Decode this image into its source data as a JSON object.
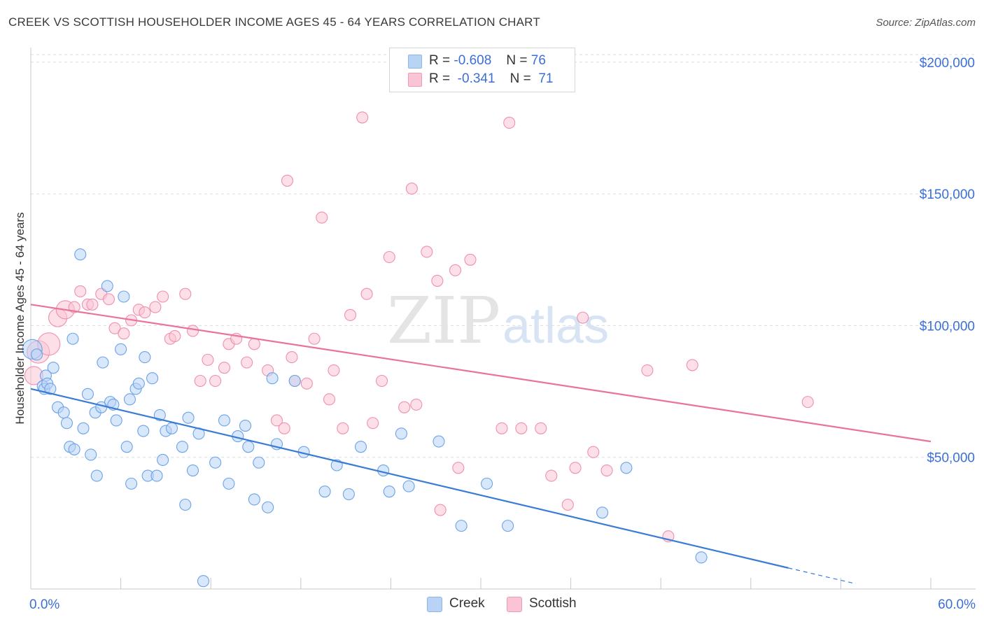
{
  "header": {
    "title": "CREEK VS SCOTTISH HOUSEHOLDER INCOME AGES 45 - 64 YEARS CORRELATION CHART",
    "source": "Source: ZipAtlas.com"
  },
  "watermark": {
    "zip": "ZIP",
    "atlas": "atlas"
  },
  "legend": {
    "rows": [
      {
        "r_label": "R =",
        "r_value": "-0.608",
        "n_label": "N =",
        "n_value": "76",
        "color": "#b9d3f5"
      },
      {
        "r_label": "R =",
        "r_value": "-0.341",
        "n_label": "N =",
        "n_value": "71",
        "color": "#f9c4d4"
      }
    ]
  },
  "bottom_legend": {
    "items": [
      {
        "label": "Creek",
        "color": "#b9d3f5"
      },
      {
        "label": "Scottish",
        "color": "#f9c4d4"
      }
    ]
  },
  "chart_data": {
    "type": "scatter",
    "title": "CREEK VS SCOTTISH HOUSEHOLDER INCOME AGES 45 - 64 YEARS CORRELATION CHART",
    "xlabel": "",
    "ylabel": "Householder Income Ages 45 - 64 years",
    "xlim": [
      0,
      60
    ],
    "ylim": [
      0,
      205000
    ],
    "x_tick_labels": [
      "0.0%",
      "60.0%"
    ],
    "y_ticks": [
      50000,
      100000,
      150000,
      200000
    ],
    "y_tick_labels": [
      "$50,000",
      "$100,000",
      "$150,000",
      "$200,000"
    ],
    "grid": true,
    "legend_position": "top-center",
    "colors": {
      "creek": "#6aa3e8",
      "scottish": "#f08fb0",
      "creek_line": "#3a7bd5",
      "scottish_line": "#e8739d",
      "tick_text": "#3b6fd6"
    },
    "series": [
      {
        "name": "Creek",
        "trend": {
          "x": [
            0,
            50.5
          ],
          "y": [
            76000,
            8000
          ],
          "dashed_to": [
            55,
            2000
          ]
        },
        "points": [
          [
            0.1,
            91000
          ],
          [
            0.4,
            89000
          ],
          [
            0.8,
            77000
          ],
          [
            0.9,
            76000
          ],
          [
            1.0,
            81000
          ],
          [
            1.1,
            78000
          ],
          [
            1.3,
            76000
          ],
          [
            1.5,
            84000
          ],
          [
            1.8,
            69000
          ],
          [
            2.2,
            67000
          ],
          [
            2.4,
            63000
          ],
          [
            2.6,
            54000
          ],
          [
            2.9,
            53000
          ],
          [
            2.8,
            95000
          ],
          [
            3.3,
            127000
          ],
          [
            3.5,
            61000
          ],
          [
            3.8,
            74000
          ],
          [
            4.0,
            51000
          ],
          [
            4.3,
            67000
          ],
          [
            4.4,
            43000
          ],
          [
            4.7,
            69000
          ],
          [
            4.8,
            86000
          ],
          [
            5.1,
            115000
          ],
          [
            5.3,
            71000
          ],
          [
            5.5,
            70000
          ],
          [
            5.7,
            64000
          ],
          [
            6.0,
            91000
          ],
          [
            6.2,
            111000
          ],
          [
            6.4,
            54000
          ],
          [
            6.6,
            72000
          ],
          [
            6.7,
            40000
          ],
          [
            7.0,
            76000
          ],
          [
            7.2,
            78000
          ],
          [
            7.5,
            60000
          ],
          [
            7.6,
            88000
          ],
          [
            7.8,
            43000
          ],
          [
            8.1,
            80000
          ],
          [
            8.4,
            43000
          ],
          [
            8.6,
            66000
          ],
          [
            8.8,
            49000
          ],
          [
            9.0,
            60000
          ],
          [
            9.4,
            61000
          ],
          [
            10.1,
            54000
          ],
          [
            10.3,
            32000
          ],
          [
            10.5,
            65000
          ],
          [
            10.8,
            45000
          ],
          [
            11.2,
            59000
          ],
          [
            11.5,
            3000
          ],
          [
            12.3,
            48000
          ],
          [
            12.9,
            64000
          ],
          [
            13.2,
            40000
          ],
          [
            13.8,
            58000
          ],
          [
            14.3,
            62000
          ],
          [
            14.5,
            54000
          ],
          [
            14.9,
            34000
          ],
          [
            15.2,
            48000
          ],
          [
            15.8,
            31000
          ],
          [
            16.1,
            80000
          ],
          [
            16.4,
            55000
          ],
          [
            17.6,
            79000
          ],
          [
            18.2,
            52000
          ],
          [
            19.6,
            37000
          ],
          [
            20.4,
            47000
          ],
          [
            21.2,
            36000
          ],
          [
            22.0,
            54000
          ],
          [
            23.5,
            45000
          ],
          [
            23.9,
            37000
          ],
          [
            24.7,
            59000
          ],
          [
            25.2,
            39000
          ],
          [
            27.2,
            56000
          ],
          [
            28.7,
            24000
          ],
          [
            30.4,
            40000
          ],
          [
            31.8,
            24000
          ],
          [
            38.1,
            29000
          ],
          [
            39.7,
            46000
          ],
          [
            44.7,
            12000
          ]
        ]
      },
      {
        "name": "Scottish",
        "trend": {
          "x": [
            0,
            60
          ],
          "y": [
            108000,
            56000
          ]
        },
        "points": [
          [
            0.2,
            81000
          ],
          [
            0.5,
            90000
          ],
          [
            1.2,
            93000
          ],
          [
            1.8,
            103000
          ],
          [
            2.3,
            106000
          ],
          [
            2.9,
            107000
          ],
          [
            3.3,
            113000
          ],
          [
            3.8,
            108000
          ],
          [
            4.1,
            108000
          ],
          [
            4.7,
            112000
          ],
          [
            5.2,
            110000
          ],
          [
            5.6,
            99000
          ],
          [
            6.2,
            97000
          ],
          [
            6.7,
            102000
          ],
          [
            7.2,
            106000
          ],
          [
            7.6,
            105000
          ],
          [
            8.3,
            107000
          ],
          [
            8.8,
            111000
          ],
          [
            9.3,
            95000
          ],
          [
            9.6,
            96000
          ],
          [
            10.3,
            112000
          ],
          [
            10.8,
            98000
          ],
          [
            11.3,
            79000
          ],
          [
            11.8,
            87000
          ],
          [
            12.3,
            79000
          ],
          [
            12.9,
            84000
          ],
          [
            13.2,
            93000
          ],
          [
            13.7,
            95000
          ],
          [
            14.4,
            86000
          ],
          [
            14.9,
            93000
          ],
          [
            15.8,
            83000
          ],
          [
            16.4,
            64000
          ],
          [
            16.9,
            61000
          ],
          [
            17.4,
            88000
          ],
          [
            17.6,
            79000
          ],
          [
            18.4,
            78000
          ],
          [
            18.9,
            95000
          ],
          [
            19.9,
            72000
          ],
          [
            20.2,
            83000
          ],
          [
            20.8,
            61000
          ],
          [
            21.3,
            104000
          ],
          [
            22.1,
            179000
          ],
          [
            22.4,
            112000
          ],
          [
            22.8,
            63000
          ],
          [
            23.4,
            79000
          ],
          [
            23.9,
            126000
          ],
          [
            24.9,
            69000
          ],
          [
            25.4,
            152000
          ],
          [
            25.7,
            70000
          ],
          [
            26.4,
            128000
          ],
          [
            27.1,
            117000
          ],
          [
            27.3,
            30000
          ],
          [
            28.3,
            121000
          ],
          [
            28.5,
            46000
          ],
          [
            29.3,
            125000
          ],
          [
            31.4,
            61000
          ],
          [
            31.9,
            177000
          ],
          [
            32.7,
            61000
          ],
          [
            34.0,
            61000
          ],
          [
            34.7,
            43000
          ],
          [
            35.8,
            32000
          ],
          [
            36.3,
            46000
          ],
          [
            36.8,
            103000
          ],
          [
            37.5,
            52000
          ],
          [
            38.4,
            45000
          ],
          [
            41.1,
            83000
          ],
          [
            42.5,
            20000
          ],
          [
            44.1,
            85000
          ],
          [
            51.8,
            71000
          ],
          [
            17.1,
            155000
          ],
          [
            19.4,
            141000
          ]
        ]
      }
    ]
  }
}
